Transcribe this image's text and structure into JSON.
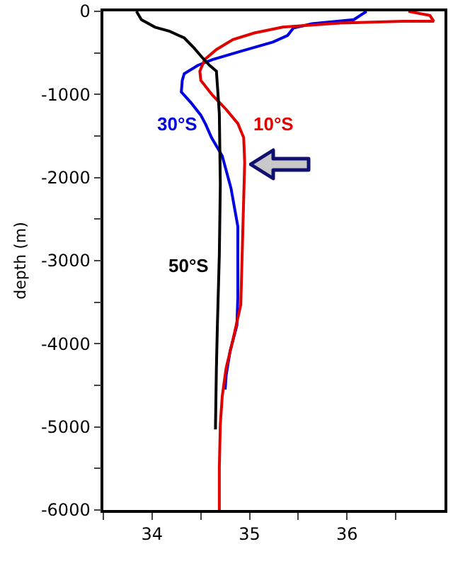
{
  "chart_data": {
    "type": "line",
    "ylabel": "depth (m)",
    "xlim": [
      33.5,
      37.0
    ],
    "xticks": [
      {
        "value": 33.5,
        "label": null
      },
      34,
      {
        "value": 34.5,
        "label": null
      },
      35,
      {
        "value": 35.5,
        "label": null
      },
      36,
      {
        "value": 36.5,
        "label": null
      }
    ],
    "ylim": [
      -6000,
      0
    ],
    "yticks": [
      0,
      {
        "value": -500,
        "label": null
      },
      -1000,
      {
        "value": -1500,
        "label": null
      },
      -2000,
      {
        "value": -2500,
        "label": null
      },
      -3000,
      {
        "value": -3500,
        "label": null
      },
      -4000,
      {
        "value": -4500,
        "label": null
      },
      -5000,
      {
        "value": -5500,
        "label": null
      },
      -6000
    ],
    "grid": false,
    "legend": false,
    "marker": "none",
    "line_style": "solid",
    "series": [
      {
        "name": "30°S",
        "color": "#0000e0",
        "x": [
          36.2,
          36.07,
          35.64,
          35.45,
          35.39,
          35.24,
          34.91,
          34.62,
          34.47,
          34.33,
          34.31,
          34.3,
          34.4,
          34.5,
          34.55,
          34.61,
          34.72,
          34.81,
          34.88,
          34.88,
          34.88,
          34.87,
          34.8,
          34.76,
          34.75
        ],
        "values": [
          0,
          -100,
          -150,
          -200,
          -290,
          -370,
          -480,
          -580,
          -650,
          -750,
          -830,
          -970,
          -1100,
          -1250,
          -1360,
          -1520,
          -1740,
          -2130,
          -2590,
          -3100,
          -3440,
          -3780,
          -4090,
          -4380,
          -4550
        ]
      },
      {
        "name": "10°S",
        "color": "#e00000",
        "x": [
          36.63,
          36.85,
          36.89,
          36.58,
          35.93,
          35.34,
          35.05,
          34.83,
          34.66,
          34.54,
          34.49,
          34.5,
          34.62,
          34.76,
          34.88,
          34.94,
          34.95,
          34.94,
          34.91,
          34.83,
          34.76,
          34.72,
          34.7,
          34.69,
          34.69
        ],
        "values": [
          0,
          -50,
          -120,
          -120,
          -140,
          -190,
          -260,
          -340,
          -460,
          -580,
          -720,
          -830,
          -1010,
          -1180,
          -1350,
          -1520,
          -1820,
          -2250,
          -3530,
          -3950,
          -4290,
          -4630,
          -4970,
          -5490,
          -6000
        ]
      },
      {
        "name": "50°S",
        "color": "#000000",
        "x": [
          33.84,
          33.89,
          34.03,
          34.18,
          34.33,
          34.43,
          34.51,
          34.59,
          34.66,
          34.67,
          34.69,
          34.7,
          34.69,
          34.67,
          34.66,
          34.65
        ],
        "values": [
          0,
          -100,
          -190,
          -240,
          -320,
          -440,
          -550,
          -650,
          -720,
          -890,
          -1230,
          -2080,
          -2930,
          -3780,
          -4290,
          -5030
        ]
      }
    ]
  }
}
